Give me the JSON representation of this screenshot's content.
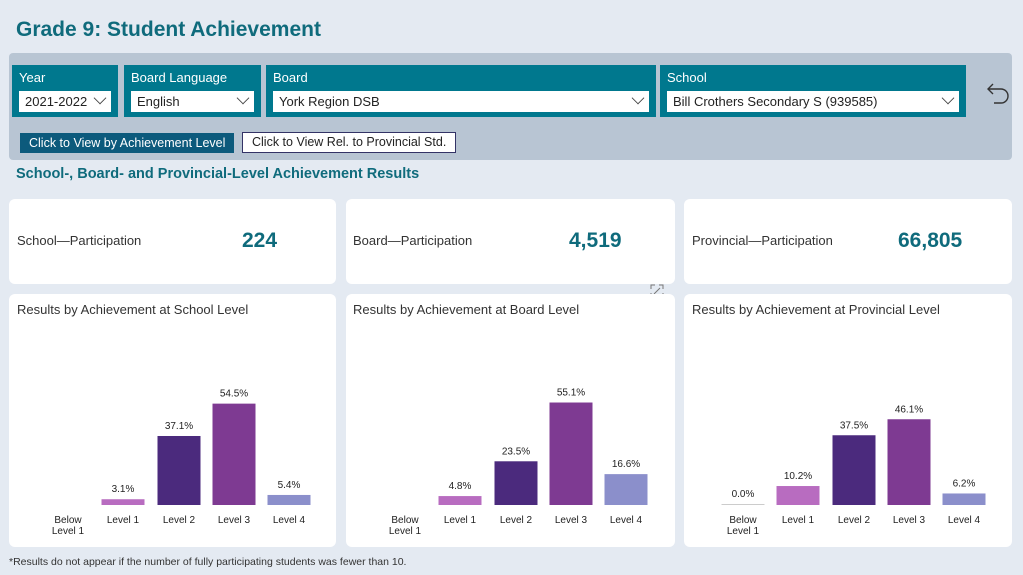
{
  "page": {
    "title": "Grade 9: Student Achievement"
  },
  "filters": {
    "year": {
      "label": "Year",
      "value": "2021-2022"
    },
    "language": {
      "label": "Board Language",
      "value": "English"
    },
    "board": {
      "label": "Board",
      "value": "York Region DSB"
    },
    "school": {
      "label": "School",
      "value": "Bill Crothers Secondary S (939585)"
    }
  },
  "buttons": {
    "by_level": "Click to View by Achievement Level",
    "rel_std": "Click to View Rel. to Provincial Std."
  },
  "section_title": "School-, Board- and Provincial-Level Achievement Results",
  "participation": [
    {
      "label": "School—Participation",
      "value": "224"
    },
    {
      "label": "Board—Participation",
      "value": "4,519"
    },
    {
      "label": "Provincial—Participation",
      "value": "66,805"
    }
  ],
  "footnote": "*Results do not appear if the number of fully participating students was fewer than 10.",
  "colors": {
    "level1": "#b86cc0",
    "level2": "#4b2a7d",
    "level3": "#7e3a92",
    "level4": "#8b8fcb",
    "accent": "#00788e"
  },
  "chart_data": [
    {
      "type": "bar",
      "title": "Results by Achievement at School Level",
      "categories": [
        "Below Level 1",
        "Level 1",
        "Level 2",
        "Level 3",
        "Level 4"
      ],
      "values": [
        null,
        3.1,
        37.1,
        54.5,
        5.4
      ],
      "labels": [
        "",
        "3.1%",
        "37.1%",
        "54.5%",
        "5.4%"
      ]
    },
    {
      "type": "bar",
      "title": "Results by Achievement at Board Level",
      "categories": [
        "Below Level 1",
        "Level 1",
        "Level 2",
        "Level 3",
        "Level 4"
      ],
      "values": [
        null,
        4.8,
        23.5,
        55.1,
        16.6
      ],
      "labels": [
        "",
        "4.8%",
        "23.5%",
        "55.1%",
        "16.6%"
      ]
    },
    {
      "type": "bar",
      "title": "Results by Achievement at Provincial Level",
      "categories": [
        "Below Level 1",
        "Level 1",
        "Level 2",
        "Level 3",
        "Level 4"
      ],
      "values": [
        0.0,
        10.2,
        37.5,
        46.1,
        6.2
      ],
      "labels": [
        "0.0%",
        "10.2%",
        "37.5%",
        "46.1%",
        "6.2%"
      ]
    }
  ]
}
